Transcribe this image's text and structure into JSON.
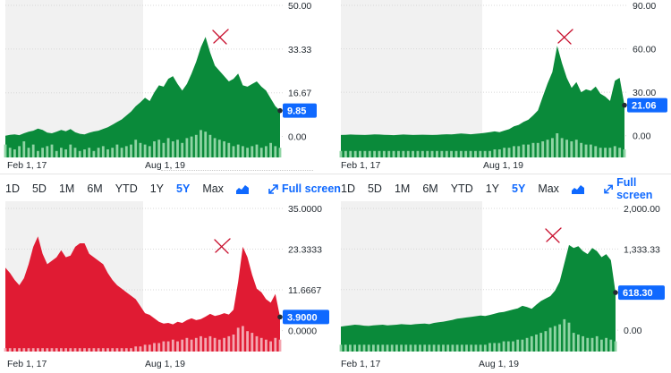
{
  "chart_data": [
    {
      "type": "area",
      "color": "#0a8a3a",
      "volume_color": "#8fd4a4",
      "y_ticks": [
        "50.00",
        "33.33",
        "16.67",
        "0.00"
      ],
      "y_tick_values": [
        50,
        33.33,
        16.67,
        0
      ],
      "ylim": [
        -8,
        50
      ],
      "x_ticks": [
        "Feb 1, 17",
        "Aug 1, 19"
      ],
      "last_value_label": "9.85",
      "last_value": 9.85,
      "values": [
        0.3,
        0.6,
        0.8,
        0.5,
        1.2,
        1.8,
        2.2,
        3.0,
        2.5,
        1.5,
        1.2,
        1.8,
        2.5,
        2.0,
        2.8,
        1.6,
        1.0,
        0.8,
        1.4,
        1.9,
        2.2,
        2.9,
        3.5,
        4.5,
        5.5,
        6.5,
        8.0,
        9.5,
        11.5,
        13.0,
        14.8,
        13.5,
        16.8,
        19.5,
        19.0,
        22.0,
        23.0,
        20.0,
        17.5,
        20.0,
        24.0,
        28.5,
        34.0,
        38.0,
        32.0,
        27.0,
        25.0,
        23.0,
        21.0,
        22.0,
        24.0,
        19.5,
        19.0,
        20.0,
        21.0,
        19.0,
        17.5,
        14.5,
        11.5,
        9.85
      ],
      "volume": [
        0.4,
        0.3,
        0.25,
        0.35,
        0.5,
        0.3,
        0.4,
        0.2,
        0.3,
        0.35,
        0.4,
        0.2,
        0.3,
        0.25,
        0.4,
        0.3,
        0.2,
        0.25,
        0.3,
        0.2,
        0.3,
        0.35,
        0.25,
        0.3,
        0.4,
        0.3,
        0.35,
        0.4,
        0.55,
        0.45,
        0.4,
        0.35,
        0.5,
        0.55,
        0.45,
        0.6,
        0.5,
        0.55,
        0.45,
        0.6,
        0.65,
        0.7,
        0.85,
        0.8,
        0.7,
        0.6,
        0.55,
        0.5,
        0.45,
        0.35,
        0.4,
        0.35,
        0.3,
        0.35,
        0.4,
        0.3,
        0.35,
        0.45,
        0.35,
        0.3
      ],
      "annotation": "X"
    },
    {
      "type": "area",
      "color": "#0a8a3a",
      "volume_color": "#8fd4a4",
      "y_ticks": [
        "90.00",
        "60.00",
        "30.00",
        "0.00"
      ],
      "y_tick_values": [
        90,
        60,
        30,
        0
      ],
      "ylim": [
        -15,
        90
      ],
      "x_ticks": [
        "Feb 1, 17",
        "Aug 1, 19"
      ],
      "last_value_label": "21.06",
      "last_value": 21.06,
      "values": [
        0.5,
        0.6,
        0.8,
        0.7,
        0.6,
        0.5,
        0.7,
        0.9,
        0.8,
        0.6,
        0.5,
        0.4,
        0.6,
        0.8,
        0.7,
        0.5,
        0.6,
        0.7,
        0.6,
        0.5,
        0.6,
        0.8,
        1.0,
        0.9,
        1.2,
        1.5,
        1.3,
        1.0,
        1.3,
        1.6,
        2.0,
        2.4,
        3.0,
        2.5,
        3.5,
        4.5,
        6.5,
        7.5,
        9.5,
        11.0,
        14.0,
        17.5,
        27.0,
        36.0,
        44.0,
        62.0,
        50.0,
        40.0,
        33.0,
        37.0,
        30.0,
        32.0,
        31.0,
        34.0,
        29.0,
        27.0,
        24.0,
        38.0,
        40.0,
        21.06
      ],
      "volume": [
        0.2,
        0.2,
        0.2,
        0.2,
        0.2,
        0.2,
        0.2,
        0.2,
        0.2,
        0.2,
        0.2,
        0.2,
        0.2,
        0.2,
        0.2,
        0.2,
        0.2,
        0.2,
        0.2,
        0.2,
        0.2,
        0.2,
        0.2,
        0.2,
        0.2,
        0.2,
        0.2,
        0.2,
        0.2,
        0.2,
        0.2,
        0.2,
        0.25,
        0.25,
        0.3,
        0.3,
        0.35,
        0.35,
        0.4,
        0.4,
        0.45,
        0.45,
        0.5,
        0.55,
        0.6,
        0.75,
        0.6,
        0.55,
        0.5,
        0.55,
        0.45,
        0.4,
        0.4,
        0.35,
        0.3,
        0.3,
        0.3,
        0.35,
        0.3,
        0.25
      ],
      "annotation": "X"
    },
    {
      "type": "area",
      "color": "#e01b33",
      "volume_color": "#f4a6b0",
      "y_ticks": [
        "35.0000",
        "23.3333",
        "11.6667",
        "0.0000"
      ],
      "y_tick_values": [
        35,
        23.3333,
        11.6667,
        0
      ],
      "ylim": [
        -6,
        35
      ],
      "x_ticks": [
        "Feb 1, 17",
        "Aug 1, 19"
      ],
      "last_value_label": "3.9000",
      "last_value": 3.9,
      "values": [
        18.0,
        16.5,
        14.5,
        13.0,
        15.0,
        19.0,
        24.0,
        27.0,
        22.0,
        19.0,
        20.0,
        21.0,
        23.0,
        21.0,
        21.5,
        24.0,
        25.0,
        25.0,
        22.0,
        21.0,
        20.0,
        19.0,
        16.5,
        14.5,
        13.0,
        12.0,
        11.0,
        10.0,
        9.0,
        7.0,
        5.0,
        4.5,
        3.5,
        2.5,
        2.0,
        2.2,
        1.8,
        2.5,
        2.2,
        3.0,
        3.5,
        3.0,
        3.3,
        4.0,
        4.8,
        4.2,
        4.5,
        5.0,
        4.6,
        6.0,
        14.0,
        24.0,
        21.0,
        16.0,
        12.0,
        11.0,
        9.0,
        8.0,
        10.5,
        3.9
      ],
      "volume": [
        0.1,
        0.1,
        0.1,
        0.1,
        0.1,
        0.1,
        0.1,
        0.1,
        0.1,
        0.1,
        0.1,
        0.1,
        0.1,
        0.1,
        0.1,
        0.1,
        0.1,
        0.1,
        0.1,
        0.1,
        0.1,
        0.1,
        0.1,
        0.1,
        0.1,
        0.1,
        0.1,
        0.1,
        0.15,
        0.15,
        0.2,
        0.2,
        0.25,
        0.25,
        0.3,
        0.3,
        0.35,
        0.3,
        0.35,
        0.4,
        0.35,
        0.4,
        0.45,
        0.4,
        0.45,
        0.4,
        0.35,
        0.4,
        0.45,
        0.5,
        0.7,
        0.75,
        0.6,
        0.55,
        0.45,
        0.4,
        0.35,
        0.3,
        0.4,
        0.35
      ],
      "annotation": "X"
    },
    {
      "type": "area",
      "color": "#0a8a3a",
      "volume_color": "#8fd4a4",
      "y_ticks": [
        "2,000.00",
        "1,333.33",
        "666.67",
        "0.00"
      ],
      "y_tick_values": [
        2000,
        1333.33,
        666.67,
        0
      ],
      "ylim": [
        -350,
        2000
      ],
      "x_ticks": [
        "Feb 1, 17",
        "Aug 1, 19"
      ],
      "last_value_label": "618.30",
      "last_value": 618.3,
      "values": [
        60,
        70,
        80,
        90,
        85,
        75,
        70,
        80,
        85,
        90,
        80,
        85,
        90,
        100,
        95,
        90,
        100,
        105,
        110,
        100,
        120,
        130,
        140,
        155,
        170,
        190,
        200,
        210,
        220,
        230,
        240,
        235,
        250,
        270,
        290,
        300,
        320,
        340,
        360,
        400,
        380,
        350,
        420,
        480,
        520,
        560,
        650,
        800,
        1100,
        1400,
        1350,
        1380,
        1300,
        1250,
        1350,
        1300,
        1200,
        1250,
        1150,
        618.3
      ],
      "volume": [
        0.2,
        0.2,
        0.2,
        0.2,
        0.2,
        0.2,
        0.2,
        0.2,
        0.2,
        0.2,
        0.2,
        0.2,
        0.2,
        0.2,
        0.2,
        0.2,
        0.2,
        0.2,
        0.2,
        0.2,
        0.2,
        0.2,
        0.2,
        0.2,
        0.2,
        0.2,
        0.2,
        0.2,
        0.2,
        0.2,
        0.2,
        0.2,
        0.25,
        0.25,
        0.25,
        0.3,
        0.3,
        0.3,
        0.35,
        0.35,
        0.4,
        0.45,
        0.5,
        0.55,
        0.6,
        0.7,
        0.75,
        0.8,
        0.95,
        0.85,
        0.55,
        0.5,
        0.45,
        0.4,
        0.4,
        0.45,
        0.35,
        0.4,
        0.35,
        0.3
      ],
      "annotation": "X"
    }
  ],
  "toolbar_left": {
    "ranges": [
      "1D",
      "5D",
      "1M",
      "6M",
      "YTD",
      "1Y",
      "5Y",
      "Max"
    ],
    "active": "5Y",
    "full_screen": "Full screen"
  },
  "toolbar_right": {
    "ranges": [
      "1D",
      "5D",
      "1M",
      "6M",
      "YTD",
      "1Y",
      "5Y",
      "Max"
    ],
    "active": "5Y",
    "full_screen": "Full screen"
  },
  "colors": {
    "accent": "#0f69ff",
    "label_bg": "#0f69ff",
    "shade": "#f1f1f1"
  }
}
